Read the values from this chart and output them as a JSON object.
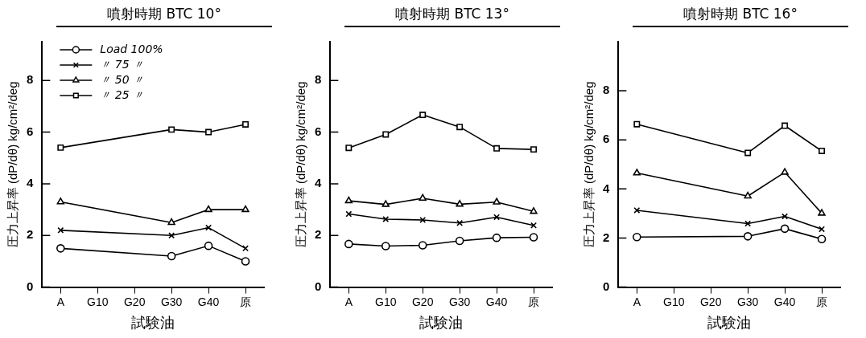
{
  "chart_data": [
    {
      "type": "line",
      "title": "噴射時期 BTC 10°",
      "xlabel": "試験油",
      "ylabel": "圧力上昇率 (dP/dθ) kg/cm²/deg",
      "categories": [
        "A",
        "G10",
        "G20",
        "G30",
        "G40",
        "原"
      ],
      "ylim": [
        0,
        9.5
      ],
      "yticks": [
        0,
        2,
        4,
        6,
        8
      ],
      "legend": "top left",
      "series": [
        {
          "name": "Load 100%",
          "marker": "circle",
          "color": "#000000",
          "values": [
            1.5,
            null,
            null,
            1.2,
            1.6,
            1.0
          ]
        },
        {
          "name": "〃 75 〃",
          "marker": "cross",
          "color": "#000000",
          "values": [
            2.2,
            null,
            null,
            2.0,
            2.3,
            1.5
          ]
        },
        {
          "name": "〃 50 〃",
          "marker": "triangle",
          "color": "#000000",
          "values": [
            3.3,
            null,
            null,
            2.5,
            3.0,
            3.0
          ]
        },
        {
          "name": "〃 25 〃",
          "marker": "square",
          "color": "#000000",
          "values": [
            5.4,
            null,
            null,
            6.1,
            6.0,
            6.3
          ]
        }
      ]
    },
    {
      "type": "line",
      "title": "噴射時期 BTC 13°",
      "xlabel": "試験油",
      "ylabel": "圧力上昇率 (dP/dθ) kg/cm²/deg",
      "categories": [
        "A",
        "G10",
        "G20",
        "G30",
        "G40",
        "原"
      ],
      "ylim": [
        0,
        9.5
      ],
      "yticks": [
        0,
        2,
        4,
        6,
        8
      ],
      "series": [
        {
          "marker": "circle",
          "color": "#000000",
          "values": [
            1.67,
            1.59,
            1.62,
            1.79,
            1.91,
            1.93
          ]
        },
        {
          "marker": "cross",
          "color": "#000000",
          "values": [
            2.83,
            2.63,
            2.6,
            2.48,
            2.71,
            2.39
          ]
        },
        {
          "marker": "triangle",
          "color": "#000000",
          "values": [
            3.34,
            3.2,
            3.44,
            3.21,
            3.29,
            2.93
          ]
        },
        {
          "marker": "square",
          "color": "#000000",
          "values": [
            5.39,
            5.91,
            6.67,
            6.2,
            5.37,
            5.33
          ]
        }
      ]
    },
    {
      "type": "line",
      "title": "噴射時期 BTC 16°",
      "xlabel": "試験油",
      "ylabel": "圧力上昇率 (dP/dθ) kg/cm²/deg",
      "categories": [
        "A",
        "G10",
        "G20",
        "G30",
        "G40",
        "原"
      ],
      "ylim": [
        0,
        10
      ],
      "yticks": [
        0,
        2,
        4,
        6,
        8
      ],
      "series": [
        {
          "marker": "circle",
          "color": "#000000",
          "values": [
            2.04,
            null,
            null,
            2.07,
            2.38,
            1.96
          ]
        },
        {
          "marker": "cross",
          "color": "#000000",
          "values": [
            3.13,
            null,
            null,
            2.59,
            2.88,
            2.36
          ]
        },
        {
          "marker": "triangle",
          "color": "#000000",
          "values": [
            4.65,
            null,
            null,
            3.71,
            4.68,
            3.01
          ]
        },
        {
          "marker": "square",
          "color": "#000000",
          "values": [
            6.64,
            null,
            null,
            5.47,
            6.58,
            5.55
          ]
        }
      ]
    }
  ]
}
